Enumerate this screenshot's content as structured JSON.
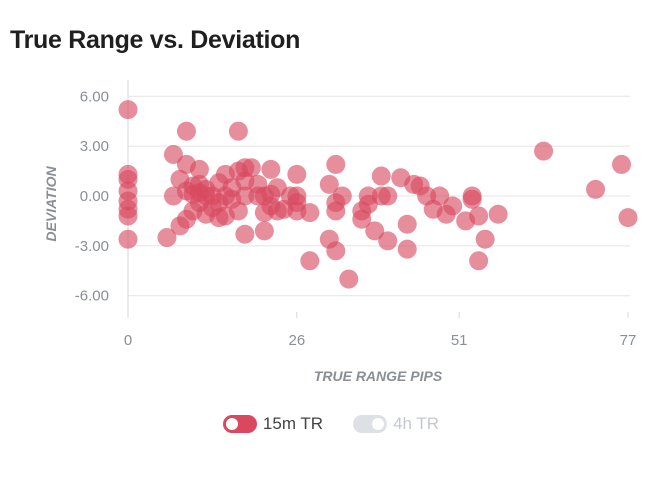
{
  "title": "True Range vs. Deviation",
  "chart_data": {
    "type": "scatter",
    "title": "True Range vs. Deviation",
    "xlabel": "TRUE RANGE PIPS",
    "ylabel": "DEVIATION",
    "xlim": [
      0,
      77
    ],
    "ylim": [
      -6.5,
      6.5
    ],
    "xticks": [
      0,
      26,
      51,
      77
    ],
    "xtick_labels": [
      "0",
      "26",
      "51",
      "77"
    ],
    "yticks": [
      6,
      3,
      0,
      -3,
      -6
    ],
    "ytick_labels": [
      "6.00",
      "3.00",
      "0.00",
      "-3.00",
      "-6.00"
    ],
    "grid": "horizontal",
    "legend_position": "bottom",
    "point_color": "#d9485f",
    "series": [
      {
        "name": "15m TR",
        "visible": true,
        "points": [
          [
            0,
            5.2
          ],
          [
            0,
            1.3
          ],
          [
            0,
            1.0
          ],
          [
            0,
            0.3
          ],
          [
            0,
            -0.3
          ],
          [
            0,
            -0.8
          ],
          [
            0,
            -1.2
          ],
          [
            0,
            -2.6
          ],
          [
            6,
            -2.5
          ],
          [
            7,
            2.5
          ],
          [
            7,
            0.0
          ],
          [
            8,
            1.0
          ],
          [
            8,
            -1.8
          ],
          [
            9,
            3.9
          ],
          [
            9,
            1.9
          ],
          [
            9,
            0.3
          ],
          [
            9,
            -1.4
          ],
          [
            10,
            0.6
          ],
          [
            10,
            0.1
          ],
          [
            10,
            -0.9
          ],
          [
            11,
            1.6
          ],
          [
            11,
            0.7
          ],
          [
            11,
            0.2
          ],
          [
            11,
            -0.4
          ],
          [
            12,
            -1.1
          ],
          [
            12,
            0.0
          ],
          [
            12,
            0.4
          ],
          [
            13,
            0.0
          ],
          [
            13,
            -0.7
          ],
          [
            14,
            -1.3
          ],
          [
            14,
            0.8
          ],
          [
            14,
            -0.4
          ],
          [
            15,
            1.3
          ],
          [
            15,
            0.0
          ],
          [
            15,
            -1.2
          ],
          [
            16,
            0.5
          ],
          [
            16,
            -0.2
          ],
          [
            17,
            3.9
          ],
          [
            17,
            1.5
          ],
          [
            17,
            -0.9
          ],
          [
            18,
            1.7
          ],
          [
            18,
            0.9
          ],
          [
            18,
            0.0
          ],
          [
            18,
            -2.3
          ],
          [
            19,
            1.7
          ],
          [
            20,
            0.0
          ],
          [
            20,
            0.7
          ],
          [
            21,
            0.0
          ],
          [
            21,
            -1.0
          ],
          [
            21,
            -2.1
          ],
          [
            22,
            1.6
          ],
          [
            22,
            0.1
          ],
          [
            22,
            -0.6
          ],
          [
            23,
            0.5
          ],
          [
            23,
            -0.9
          ],
          [
            24,
            -0.8
          ],
          [
            25,
            0.0
          ],
          [
            26,
            1.3
          ],
          [
            26,
            0.0
          ],
          [
            26,
            -0.4
          ],
          [
            26,
            -0.9
          ],
          [
            28,
            -1.0
          ],
          [
            28,
            -3.9
          ],
          [
            31,
            0.7
          ],
          [
            31,
            -2.6
          ],
          [
            32,
            1.9
          ],
          [
            32,
            -0.4
          ],
          [
            32,
            -0.9
          ],
          [
            32,
            -3.3
          ],
          [
            33,
            0.0
          ],
          [
            34,
            -5.0
          ],
          [
            36,
            -0.9
          ],
          [
            36,
            -1.4
          ],
          [
            37,
            0.0
          ],
          [
            37,
            -0.5
          ],
          [
            38,
            -2.1
          ],
          [
            39,
            1.2
          ],
          [
            39,
            0.0
          ],
          [
            40,
            -2.7
          ],
          [
            40,
            0.0
          ],
          [
            42,
            1.1
          ],
          [
            43,
            -1.7
          ],
          [
            43,
            -3.2
          ],
          [
            44,
            0.7
          ],
          [
            45,
            0.6
          ],
          [
            46,
            0.0
          ],
          [
            47,
            -0.8
          ],
          [
            48,
            0.0
          ],
          [
            49,
            -1.1
          ],
          [
            50,
            -0.6
          ],
          [
            52,
            -1.5
          ],
          [
            53,
            0.0
          ],
          [
            53,
            -0.2
          ],
          [
            54,
            -1.2
          ],
          [
            54,
            -3.9
          ],
          [
            55,
            -2.6
          ],
          [
            57,
            -1.1
          ],
          [
            64,
            2.7
          ],
          [
            72,
            0.4
          ],
          [
            76,
            1.9
          ],
          [
            77,
            -1.3
          ]
        ]
      },
      {
        "name": "4h TR",
        "visible": false,
        "points": []
      }
    ]
  },
  "legend": {
    "items": [
      {
        "label": "15m TR",
        "active": true,
        "color": "#d9485f"
      },
      {
        "label": "4h TR",
        "active": false,
        "color": "#dde1e6"
      }
    ]
  }
}
